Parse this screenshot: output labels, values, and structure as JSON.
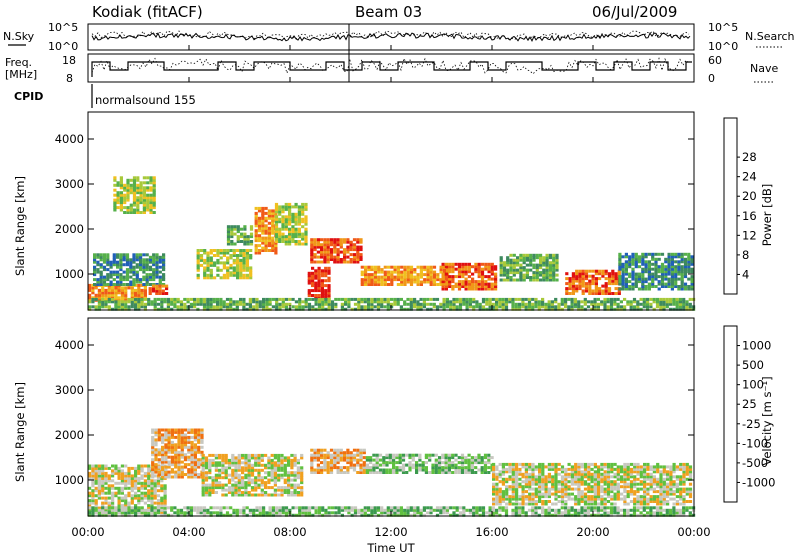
{
  "header": {
    "station": "Kodiak (fitACF)",
    "beam": "Beam 03",
    "date": "06/Jul/2009"
  },
  "noise_panel": {
    "left_label": "N.Sky",
    "left_ticks": [
      "10^5",
      "10^0"
    ],
    "right_label": "N.Search",
    "right_ticks": [
      "10^5",
      "10^0"
    ]
  },
  "freq_panel": {
    "left_label_1": "Freq.",
    "left_label_2": "[MHz]",
    "left_ticks": [
      "18",
      "8"
    ],
    "right_label": "Nave",
    "right_ticks": [
      "60",
      "0"
    ]
  },
  "cpid_panel": {
    "label": "CPID",
    "program": "normalsound 155"
  },
  "x_axis": {
    "title": "Time UT",
    "ticks": [
      "00:00",
      "04:00",
      "08:00",
      "12:00",
      "16:00",
      "20:00",
      "00:00"
    ]
  },
  "chart_data": [
    {
      "type": "heatmap",
      "panel": "power",
      "ylabel": "Slant Range [km]",
      "yticks": [
        1000,
        2000,
        3000,
        4000
      ],
      "ylim": [
        200,
        4600
      ],
      "xlim_hours": [
        0,
        24
      ],
      "colorbar": {
        "label": "Power [dB]",
        "tick_labels": [
          "4",
          "8",
          "12",
          "16",
          "20",
          "24",
          "28"
        ],
        "colors": [
          "#1f24e0",
          "#2060b8",
          "#3e8a5e",
          "#56b04a",
          "#a8c93a",
          "#f0c020",
          "#f09818",
          "#f05a18",
          "#e01010"
        ]
      },
      "echo_regions": [
        {
          "t0": 0.0,
          "t1": 2.3,
          "r0": 450,
          "r1": 800,
          "level": 6
        },
        {
          "t0": 0.2,
          "t1": 3.0,
          "r0": 800,
          "r1": 1500,
          "level": 2
        },
        {
          "t0": 1.0,
          "t1": 2.6,
          "r0": 2400,
          "r1": 3200,
          "level": 4
        },
        {
          "t0": 2.4,
          "t1": 3.1,
          "r0": 600,
          "r1": 800,
          "level": 7
        },
        {
          "t0": 4.3,
          "t1": 6.5,
          "r0": 950,
          "r1": 1600,
          "level": 4
        },
        {
          "t0": 5.5,
          "t1": 6.5,
          "r0": 1700,
          "r1": 2100,
          "level": 3
        },
        {
          "t0": 6.6,
          "t1": 7.4,
          "r0": 1500,
          "r1": 2500,
          "level": 6
        },
        {
          "t0": 7.4,
          "t1": 8.6,
          "r0": 1700,
          "r1": 2600,
          "level": 4
        },
        {
          "t0": 8.7,
          "t1": 9.6,
          "r0": 500,
          "r1": 1200,
          "level": 8
        },
        {
          "t0": 8.8,
          "t1": 10.8,
          "r0": 1300,
          "r1": 1800,
          "level": 7
        },
        {
          "t0": 10.8,
          "t1": 14.2,
          "r0": 800,
          "r1": 1200,
          "level": 6
        },
        {
          "t0": 14.0,
          "t1": 16.2,
          "r0": 700,
          "r1": 1300,
          "level": 7
        },
        {
          "t0": 16.3,
          "t1": 18.6,
          "r0": 900,
          "r1": 1500,
          "level": 3
        },
        {
          "t0": 18.9,
          "t1": 21.0,
          "r0": 600,
          "r1": 1100,
          "level": 7
        },
        {
          "t0": 21.0,
          "t1": 24.0,
          "r0": 700,
          "r1": 1500,
          "level": 2
        },
        {
          "t0": 0.0,
          "t1": 24.0,
          "r0": 250,
          "r1": 480,
          "level": 3
        }
      ]
    },
    {
      "type": "heatmap",
      "panel": "velocity",
      "ylabel": "Slant Range [km]",
      "yticks": [
        1000,
        2000,
        3000,
        4000
      ],
      "ylim": [
        200,
        4600
      ],
      "xlim_hours": [
        0,
        24
      ],
      "colorbar": {
        "label": "Velocity [m s⁻¹]",
        "tick_labels": [
          "1000",
          "500",
          "100",
          "25",
          "-25",
          "-100",
          "-500",
          "-1000"
        ],
        "colors": [
          "#1a30c8",
          "#2070a0",
          "#3c9a4e",
          "#60c040",
          "#c8c8c0",
          "#f0a020",
          "#f07010",
          "#f04010",
          "#e00808"
        ]
      },
      "echo_regions": [
        {
          "t0": 0.0,
          "t1": 3.0,
          "r0": 300,
          "r1": 1400,
          "level": 4
        },
        {
          "t0": 2.5,
          "t1": 4.5,
          "r0": 1100,
          "r1": 2200,
          "level": 5
        },
        {
          "t0": 4.5,
          "t1": 8.5,
          "r0": 700,
          "r1": 1600,
          "level": 4
        },
        {
          "t0": 8.8,
          "t1": 11.0,
          "r0": 1200,
          "r1": 1700,
          "level": 5
        },
        {
          "t0": 11.0,
          "t1": 16.0,
          "r0": 1200,
          "r1": 1600,
          "level": 3
        },
        {
          "t0": 16.0,
          "t1": 24.0,
          "r0": 500,
          "r1": 1400,
          "level": 4
        },
        {
          "t0": 0.0,
          "t1": 24.0,
          "r0": 250,
          "r1": 450,
          "level": 3
        }
      ]
    }
  ]
}
